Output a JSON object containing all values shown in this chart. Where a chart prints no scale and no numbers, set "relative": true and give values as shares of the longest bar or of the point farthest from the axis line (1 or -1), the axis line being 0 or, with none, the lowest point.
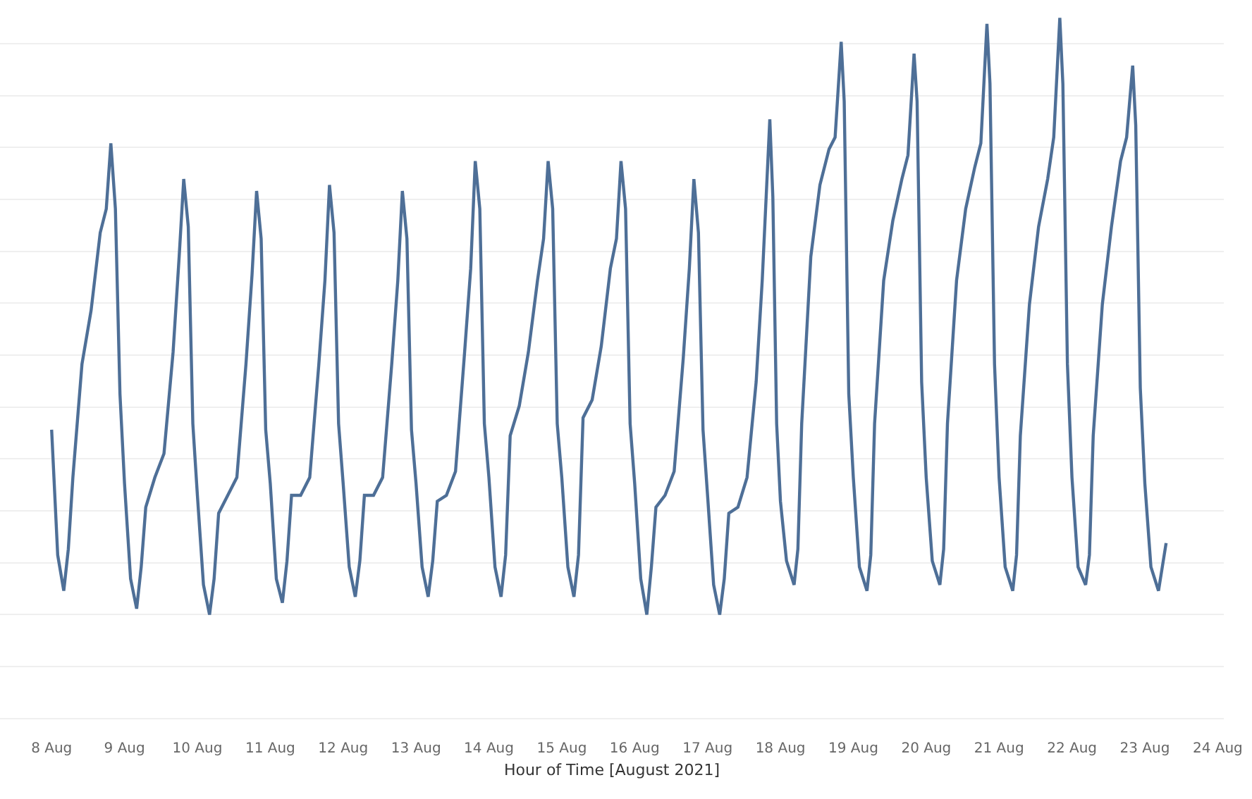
{
  "chart_data": {
    "type": "line",
    "relative": true,
    "xlabel": "Hour of Time [August 2021]",
    "grid": "y",
    "marker": "none",
    "line_style": "solid",
    "xlim": [
      "2021-08-07T07:00",
      "2021-08-24T02:00"
    ],
    "xticks": [
      {
        "value": "2021-08-08",
        "label": "8 Aug"
      },
      {
        "value": "2021-08-09",
        "label": "9 Aug"
      },
      {
        "value": "2021-08-10",
        "label": "10 Aug"
      },
      {
        "value": "2021-08-11",
        "label": "11 Aug"
      },
      {
        "value": "2021-08-12",
        "label": "12 Aug"
      },
      {
        "value": "2021-08-13",
        "label": "13 Aug"
      },
      {
        "value": "2021-08-14",
        "label": "14 Aug"
      },
      {
        "value": "2021-08-15",
        "label": "15 Aug"
      },
      {
        "value": "2021-08-16",
        "label": "16 Aug"
      },
      {
        "value": "2021-08-17",
        "label": "17 Aug"
      },
      {
        "value": "2021-08-18",
        "label": "18 Aug"
      },
      {
        "value": "2021-08-19",
        "label": "19 Aug"
      },
      {
        "value": "2021-08-20",
        "label": "20 Aug"
      },
      {
        "value": "2021-08-21",
        "label": "21 Aug"
      },
      {
        "value": "2021-08-22",
        "label": "22 Aug"
      },
      {
        "value": "2021-08-23",
        "label": "23 Aug"
      },
      {
        "value": "2021-08-24",
        "label": "24 Aug"
      }
    ],
    "series": [
      {
        "color": "#4e6f97",
        "x": [
          "2021-08-08T00:00",
          "2021-08-08T02:00",
          "2021-08-08T04:00",
          "2021-08-08T05:30",
          "2021-08-08T07:00",
          "2021-08-08T10:00",
          "2021-08-08T13:00",
          "2021-08-08T16:00",
          "2021-08-08T18:00",
          "2021-08-08T19:30",
          "2021-08-08T21:00",
          "2021-08-08T22:30",
          "2021-08-09T00:00",
          "2021-08-09T02:00",
          "2021-08-09T04:00",
          "2021-08-09T05:30",
          "2021-08-09T07:00",
          "2021-08-09T10:00",
          "2021-08-09T13:00",
          "2021-08-09T16:00",
          "2021-08-09T18:00",
          "2021-08-09T19:30",
          "2021-08-09T21:00",
          "2021-08-09T22:30",
          "2021-08-10T00:00",
          "2021-08-10T02:00",
          "2021-08-10T04:00",
          "2021-08-10T05:30",
          "2021-08-10T07:00",
          "2021-08-10T10:00",
          "2021-08-10T13:00",
          "2021-08-10T16:00",
          "2021-08-10T18:00",
          "2021-08-10T19:30",
          "2021-08-10T21:00",
          "2021-08-10T22:30",
          "2021-08-11T00:00",
          "2021-08-11T02:00",
          "2021-08-11T04:00",
          "2021-08-11T05:30",
          "2021-08-11T07:00",
          "2021-08-11T10:00",
          "2021-08-11T13:00",
          "2021-08-11T16:00",
          "2021-08-11T18:00",
          "2021-08-11T19:30",
          "2021-08-11T21:00",
          "2021-08-11T22:30",
          "2021-08-12T00:00",
          "2021-08-12T02:00",
          "2021-08-12T04:00",
          "2021-08-12T05:30",
          "2021-08-12T07:00",
          "2021-08-12T10:00",
          "2021-08-12T13:00",
          "2021-08-12T16:00",
          "2021-08-12T18:00",
          "2021-08-12T19:30",
          "2021-08-12T21:00",
          "2021-08-12T22:30",
          "2021-08-13T00:00",
          "2021-08-13T02:00",
          "2021-08-13T04:00",
          "2021-08-13T05:30",
          "2021-08-13T07:00",
          "2021-08-13T10:00",
          "2021-08-13T13:00",
          "2021-08-13T16:00",
          "2021-08-13T18:00",
          "2021-08-13T19:30",
          "2021-08-13T21:00",
          "2021-08-13T22:30",
          "2021-08-14T00:00",
          "2021-08-14T02:00",
          "2021-08-14T04:00",
          "2021-08-14T05:30",
          "2021-08-14T07:00",
          "2021-08-14T10:00",
          "2021-08-14T13:00",
          "2021-08-14T16:00",
          "2021-08-14T18:00",
          "2021-08-14T19:30",
          "2021-08-14T21:00",
          "2021-08-14T22:30",
          "2021-08-15T00:00",
          "2021-08-15T02:00",
          "2021-08-15T04:00",
          "2021-08-15T05:30",
          "2021-08-15T07:00",
          "2021-08-15T10:00",
          "2021-08-15T13:00",
          "2021-08-15T16:00",
          "2021-08-15T18:00",
          "2021-08-15T19:30",
          "2021-08-15T21:00",
          "2021-08-15T22:30",
          "2021-08-16T00:00",
          "2021-08-16T02:00",
          "2021-08-16T04:00",
          "2021-08-16T05:30",
          "2021-08-16T07:00",
          "2021-08-16T10:00",
          "2021-08-16T13:00",
          "2021-08-16T16:00",
          "2021-08-16T18:00",
          "2021-08-16T19:30",
          "2021-08-16T21:00",
          "2021-08-16T22:30",
          "2021-08-17T00:00",
          "2021-08-17T02:00",
          "2021-08-17T04:00",
          "2021-08-17T05:30",
          "2021-08-17T07:00",
          "2021-08-17T10:00",
          "2021-08-17T13:00",
          "2021-08-17T16:00",
          "2021-08-17T18:00",
          "2021-08-17T20:30",
          "2021-08-17T21:30",
          "2021-08-17T22:45",
          "2021-08-18T00:00",
          "2021-08-18T02:00",
          "2021-08-18T04:30",
          "2021-08-18T05:45",
          "2021-08-18T07:00",
          "2021-08-18T10:00",
          "2021-08-18T13:00",
          "2021-08-18T16:00",
          "2021-08-18T18:00",
          "2021-08-18T20:00",
          "2021-08-18T21:00",
          "2021-08-18T22:30",
          "2021-08-19T00:00",
          "2021-08-19T02:00",
          "2021-08-19T04:30",
          "2021-08-19T05:45",
          "2021-08-19T07:00",
          "2021-08-19T10:00",
          "2021-08-19T13:00",
          "2021-08-19T16:00",
          "2021-08-19T18:00",
          "2021-08-19T20:00",
          "2021-08-19T21:00",
          "2021-08-19T22:30",
          "2021-08-20T00:00",
          "2021-08-20T02:00",
          "2021-08-20T04:30",
          "2021-08-20T05:45",
          "2021-08-20T07:00",
          "2021-08-20T10:00",
          "2021-08-20T13:00",
          "2021-08-20T16:00",
          "2021-08-20T18:00",
          "2021-08-20T20:00",
          "2021-08-20T21:00",
          "2021-08-20T22:30",
          "2021-08-21T00:00",
          "2021-08-21T02:00",
          "2021-08-21T04:30",
          "2021-08-21T05:45",
          "2021-08-21T07:00",
          "2021-08-21T10:00",
          "2021-08-21T13:00",
          "2021-08-21T16:00",
          "2021-08-21T18:00",
          "2021-08-21T20:00",
          "2021-08-21T21:00",
          "2021-08-21T22:30",
          "2021-08-22T00:00",
          "2021-08-22T02:00",
          "2021-08-22T04:30",
          "2021-08-22T05:45",
          "2021-08-22T07:00",
          "2021-08-22T10:00",
          "2021-08-22T13:00",
          "2021-08-22T16:00",
          "2021-08-22T18:00",
          "2021-08-22T20:00",
          "2021-08-22T21:00",
          "2021-08-22T22:30",
          "2021-08-23T00:00",
          "2021-08-23T02:00",
          "2021-08-23T04:30",
          "2021-08-23T07:00"
        ],
        "values": [
          0.31,
          0.1,
          0.04,
          0.11,
          0.23,
          0.42,
          0.51,
          0.64,
          0.68,
          0.79,
          0.68,
          0.37,
          0.22,
          0.06,
          0.01,
          0.08,
          0.18,
          0.23,
          0.27,
          0.44,
          0.6,
          0.73,
          0.65,
          0.32,
          0.2,
          0.05,
          0.0,
          0.06,
          0.17,
          0.2,
          0.23,
          0.42,
          0.57,
          0.71,
          0.63,
          0.31,
          0.22,
          0.06,
          0.02,
          0.09,
          0.2,
          0.2,
          0.23,
          0.42,
          0.56,
          0.72,
          0.64,
          0.32,
          0.22,
          0.08,
          0.03,
          0.09,
          0.2,
          0.2,
          0.23,
          0.42,
          0.56,
          0.71,
          0.63,
          0.31,
          0.22,
          0.08,
          0.03,
          0.09,
          0.19,
          0.2,
          0.24,
          0.44,
          0.58,
          0.76,
          0.68,
          0.32,
          0.23,
          0.08,
          0.03,
          0.1,
          0.3,
          0.35,
          0.44,
          0.56,
          0.63,
          0.76,
          0.68,
          0.32,
          0.23,
          0.08,
          0.03,
          0.1,
          0.33,
          0.36,
          0.45,
          0.58,
          0.63,
          0.76,
          0.68,
          0.32,
          0.22,
          0.06,
          0.0,
          0.08,
          0.18,
          0.2,
          0.24,
          0.43,
          0.58,
          0.73,
          0.64,
          0.31,
          0.2,
          0.05,
          0.0,
          0.06,
          0.17,
          0.18,
          0.23,
          0.39,
          0.56,
          0.83,
          0.7,
          0.32,
          0.19,
          0.09,
          0.05,
          0.11,
          0.32,
          0.6,
          0.72,
          0.78,
          0.8,
          0.96,
          0.86,
          0.37,
          0.23,
          0.08,
          0.04,
          0.1,
          0.32,
          0.56,
          0.66,
          0.73,
          0.77,
          0.94,
          0.86,
          0.39,
          0.23,
          0.09,
          0.05,
          0.11,
          0.32,
          0.56,
          0.68,
          0.75,
          0.79,
          0.99,
          0.89,
          0.42,
          0.23,
          0.08,
          0.04,
          0.1,
          0.3,
          0.52,
          0.65,
          0.73,
          0.8,
          1.0,
          0.89,
          0.42,
          0.23,
          0.08,
          0.05,
          0.1,
          0.3,
          0.52,
          0.65,
          0.76,
          0.8,
          0.92,
          0.82,
          0.38,
          0.22,
          0.08,
          0.04,
          0.12
        ]
      }
    ]
  }
}
